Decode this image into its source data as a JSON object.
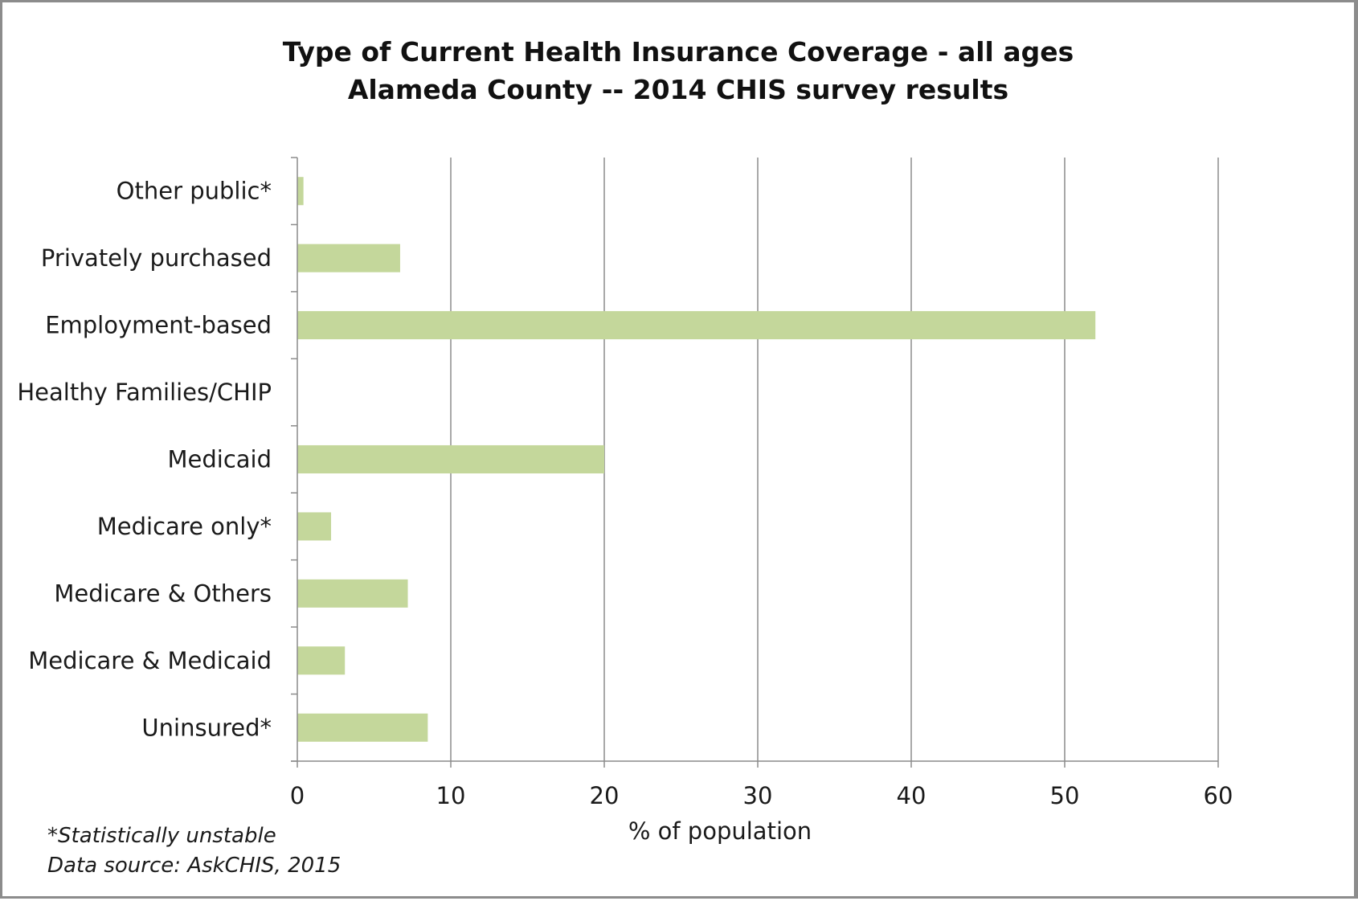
{
  "chart_data": {
    "type": "bar",
    "orientation": "horizontal",
    "title": "Type of Current Health Insurance Coverage - all ages",
    "subtitle": "Alameda County -- 2014 CHIS survey results",
    "categories": [
      "Other public*",
      "Privately purchased",
      "Employment-based",
      "Healthy Families/CHIP",
      "Medicaid",
      "Medicare only*",
      "Medicare & Others",
      "Medicare & Medicaid",
      "Uninsured*"
    ],
    "values": [
      0.4,
      6.7,
      52.0,
      0,
      20.0,
      2.2,
      7.2,
      3.1,
      8.5
    ],
    "xlabel": "% of population",
    "xlim": [
      0,
      60
    ],
    "xticks": [
      "0",
      "10",
      "20",
      "30",
      "40",
      "50",
      "60"
    ],
    "grid": "vertical",
    "bar_color": "#c4d79b",
    "grid_color": "#8c8c8c"
  },
  "footnotes": [
    "*Statistically unstable",
    "Data source: AskCHIS, 2015"
  ]
}
